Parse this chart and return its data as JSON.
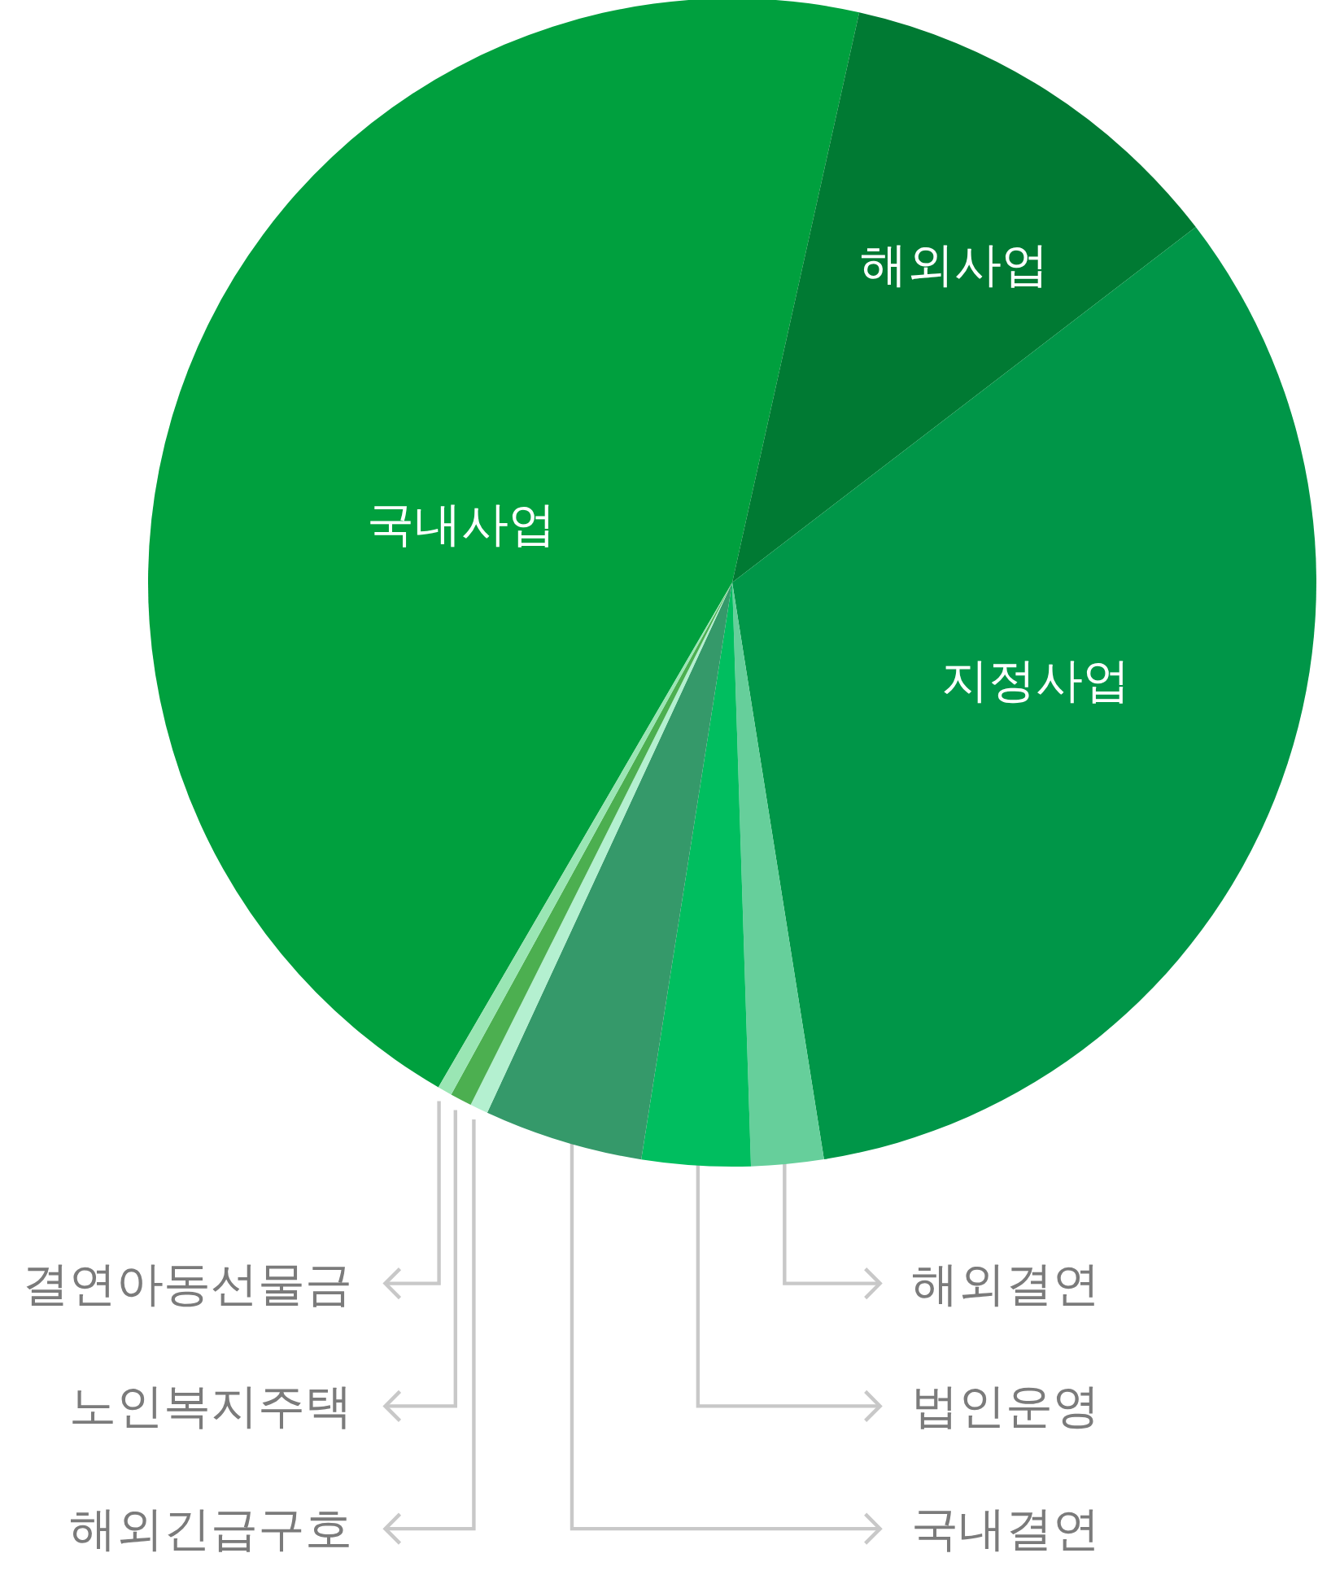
{
  "chart_data": {
    "type": "pie",
    "categories": [
      "국내사업",
      "해외사업",
      "지정사업",
      "해외결연",
      "법인운영",
      "국내결연",
      "해외긴급구호",
      "노인복지주택",
      "결연아동선물금"
    ],
    "values": [
      45.1,
      11.1,
      32.9,
      2.0,
      3.0,
      4.4,
      0.5,
      0.6,
      0.4
    ],
    "colors": [
      "#00a03e",
      "#007a33",
      "#009648",
      "#66cf9b",
      "#00be5f",
      "#35996a",
      "#b4f0d0",
      "#4caf50",
      "#9ae6b4"
    ]
  }
}
